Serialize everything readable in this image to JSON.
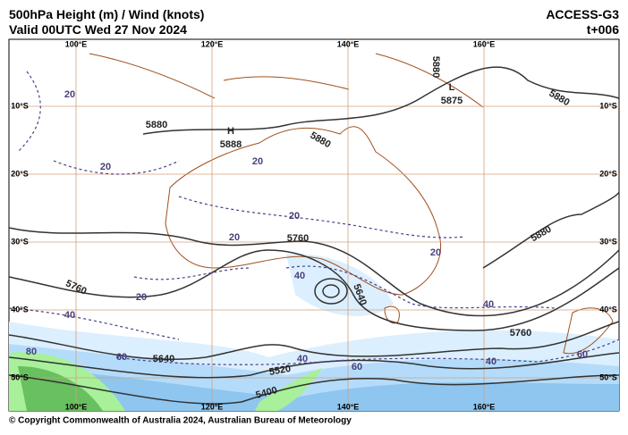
{
  "header": {
    "title": "500hPa Height (m) / Wind (knots)",
    "valid": "Valid 00UTC Wed 27 Nov 2024",
    "model": "ACCESS-G3",
    "lead": "t+006"
  },
  "longitudes": [
    "100°E",
    "120°E",
    "140°E",
    "160°E"
  ],
  "latitudes": [
    "10°S",
    "20°S",
    "30°S",
    "40°S",
    "50°S"
  ],
  "pressure_centres": [
    "H",
    "L"
  ],
  "height_labels": [
    "5880",
    "5888",
    "5880",
    "5880",
    "5875",
    "5880",
    "5880",
    "5760",
    "5760",
    "5640",
    "5760",
    "5640",
    "5520",
    "5400"
  ],
  "wind_labels": [
    "20",
    "20",
    "20",
    "20",
    "20",
    "20",
    "20",
    "40",
    "40",
    "40",
    "40",
    "40",
    "60",
    "60",
    "60",
    "80"
  ],
  "footer": "© Copyright Commonwealth of Australia 2024, Australian Bureau of Meteorology"
}
